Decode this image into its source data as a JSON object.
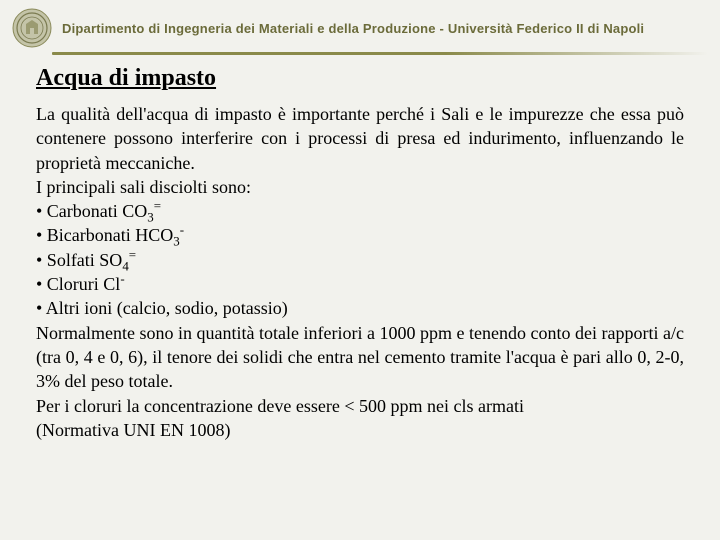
{
  "header": {
    "text": "Dipartimento di Ingegneria dei Materiali e della Produzione - Università Federico II di Napoli",
    "text_color": "#6b6b3a",
    "divider_color": "#8a8a4a"
  },
  "logo": {
    "circle_color": "#9a9a70",
    "inner_color": "#7a7a50"
  },
  "title": "Acqua di impasto",
  "paragraphs": {
    "intro": "La qualità dell'acqua di impasto è importante perché i Sali e le impurezze che essa può contenere possono interferire con i processi di presa ed indurimento, influenzando le proprietà meccaniche.",
    "list_intro": "I principali sali disciolti sono:",
    "bullets": [
      {
        "label": "Carbonati CO",
        "sub": "3",
        "sup": "="
      },
      {
        "label": "Bicarbonati HCO",
        "sub": "3",
        "sup": "-"
      },
      {
        "label": "Solfati SO",
        "sub": "4",
        "sup": "="
      },
      {
        "label": "Cloruri Cl",
        "sub": "",
        "sup": "-"
      },
      {
        "label": "Altri ioni (calcio, sodio, potassio)",
        "sub": "",
        "sup": ""
      }
    ],
    "para2": "Normalmente sono in quantità totale inferiori a 1000 ppm e tenendo conto dei rapporti a/c (tra 0, 4 e 0, 6), il tenore dei solidi che entra nel cemento tramite l'acqua è pari allo 0, 2-0, 3% del peso totale.",
    "para3": "Per i cloruri la concentrazione deve essere < 500 ppm nei cls armati",
    "para4": "(Normativa UNI EN 1008)"
  },
  "style": {
    "background": "#f2f2ed",
    "title_fontsize": 24,
    "body_fontsize": 18,
    "header_fontsize": 13
  }
}
